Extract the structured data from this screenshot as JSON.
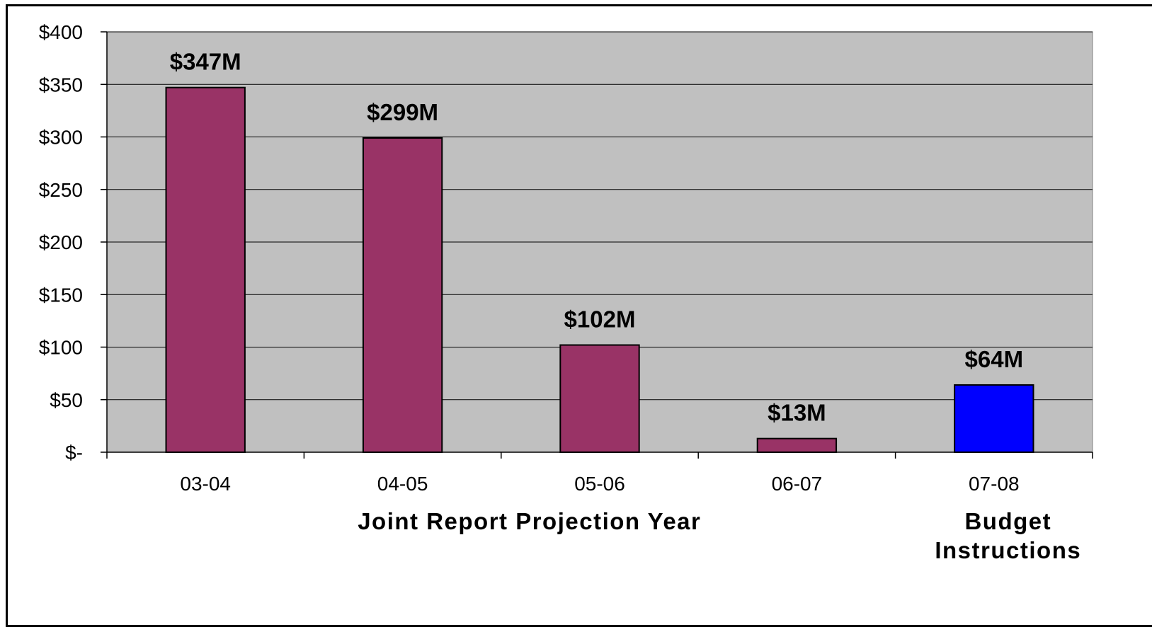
{
  "chart_data": {
    "type": "bar",
    "categories": [
      "03-04",
      "04-05",
      "05-06",
      "06-07",
      "07-08"
    ],
    "values": [
      347,
      299,
      102,
      13,
      64
    ],
    "data_labels": [
      "$347M",
      "$299M",
      "$102M",
      "$13M",
      "$64M"
    ],
    "bar_colors": [
      "#993366",
      "#993366",
      "#993366",
      "#993366",
      "#0000FF"
    ],
    "ylim": [
      0,
      400
    ],
    "yticks": [
      0,
      50,
      100,
      150,
      200,
      250,
      300,
      350,
      400
    ],
    "ytick_labels": [
      "$-",
      "$50",
      "$100",
      "$150",
      "$200",
      "$250",
      "$300",
      "$350",
      "$400"
    ],
    "group_labels": [
      {
        "text": "Joint Report Projection Year",
        "span": [
          "03-04",
          "06-07"
        ]
      },
      {
        "text": "Budget Instructions",
        "span": [
          "07-08",
          "07-08"
        ]
      }
    ],
    "plot_background": "#C0C0C0",
    "grid": true
  }
}
